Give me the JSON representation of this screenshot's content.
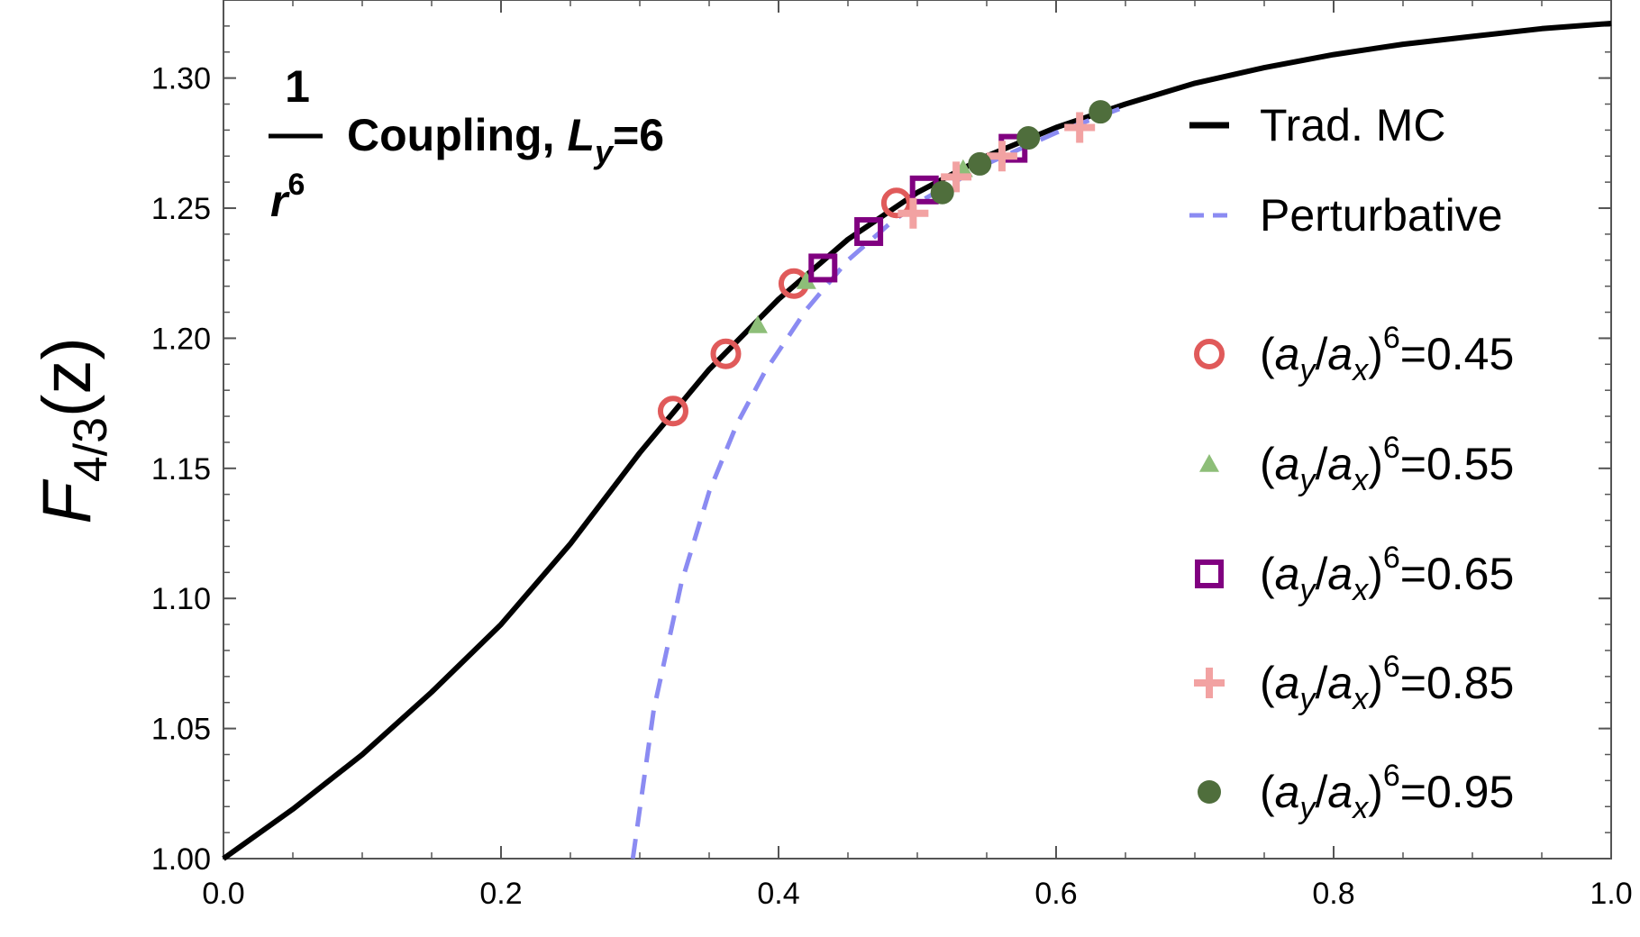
{
  "chart_data": {
    "type": "line",
    "title": {
      "numerator": "1",
      "denominator": "r",
      "denominator_exp": "6",
      "text": "Coupling,",
      "L": "L",
      "L_sub": "y",
      "L_value": "=6"
    },
    "ylabel": {
      "main": "F",
      "sub": "4/3",
      "arg": "(z)"
    },
    "xlabel": "",
    "xlim": [
      0.0,
      1.0
    ],
    "ylim": [
      1.0,
      1.33
    ],
    "xticks": [
      "0.0",
      "0.2",
      "0.4",
      "0.6",
      "0.8",
      "1.0"
    ],
    "yticks": [
      "1.00",
      "1.05",
      "1.10",
      "1.15",
      "1.20",
      "1.25",
      "1.30"
    ],
    "grid": false,
    "legend_position": "right",
    "lines": [
      {
        "name": "Trad. MC",
        "color": "#000000",
        "style": "solid",
        "x": [
          0.0,
          0.05,
          0.1,
          0.15,
          0.2,
          0.25,
          0.3,
          0.35,
          0.4,
          0.45,
          0.5,
          0.55,
          0.6,
          0.65,
          0.7,
          0.75,
          0.8,
          0.85,
          0.9,
          0.95,
          1.0
        ],
        "y": [
          1.0,
          1.019,
          1.04,
          1.064,
          1.09,
          1.121,
          1.156,
          1.188,
          1.215,
          1.238,
          1.256,
          1.27,
          1.281,
          1.29,
          1.298,
          1.304,
          1.309,
          1.313,
          1.316,
          1.319,
          1.321
        ]
      },
      {
        "name": "Perturbative",
        "color": "#8B8BF2",
        "style": "dashed",
        "x": [
          0.295,
          0.31,
          0.33,
          0.35,
          0.37,
          0.39,
          0.42,
          0.45,
          0.48,
          0.5,
          0.55,
          0.6,
          0.65
        ],
        "y": [
          1.0,
          1.057,
          1.106,
          1.141,
          1.167,
          1.187,
          1.211,
          1.23,
          1.244,
          1.252,
          1.267,
          1.279,
          1.289
        ]
      }
    ],
    "scatter": [
      {
        "name": "(a_y/a_x)^6=0.45",
        "label_parts": [
          "(",
          "a",
          "y",
          "/",
          "a",
          "x",
          ")",
          "6",
          "=0.45"
        ],
        "marker": "open-circle",
        "color": "#E05A5A",
        "x": [
          0.324,
          0.362,
          0.411,
          0.485
        ],
        "y": [
          1.172,
          1.194,
          1.221,
          1.252
        ]
      },
      {
        "name": "(a_y/a_x)^6=0.55",
        "label_parts": [
          "(",
          "a",
          "y",
          "/",
          "a",
          "x",
          ")",
          "6",
          "=0.55"
        ],
        "marker": "filled-triangle",
        "color": "#8DBE78",
        "x": [
          0.385,
          0.42,
          0.533
        ],
        "y": [
          1.205,
          1.222,
          1.265
        ]
      },
      {
        "name": "(a_y/a_x)^6=0.65",
        "label_parts": [
          "(",
          "a",
          "y",
          "/",
          "a",
          "x",
          ")",
          "6",
          "=0.65"
        ],
        "marker": "open-square",
        "color": "#800080",
        "x": [
          0.432,
          0.465,
          0.505,
          0.569
        ],
        "y": [
          1.227,
          1.241,
          1.257,
          1.273
        ]
      },
      {
        "name": "(a_y/a_x)^6=0.85",
        "label_parts": [
          "(",
          "a",
          "y",
          "/",
          "a",
          "x",
          ")",
          "6",
          "=0.85"
        ],
        "marker": "plus",
        "color": "#F2A2A2",
        "x": [
          0.497,
          0.528,
          0.561,
          0.617
        ],
        "y": [
          1.248,
          1.262,
          1.27,
          1.281
        ]
      },
      {
        "name": "(a_y/a_x)^6=0.95",
        "label_parts": [
          "(",
          "a",
          "y",
          "/",
          "a",
          "x",
          ")",
          "6",
          "=0.95"
        ],
        "marker": "filled-circle",
        "color": "#4F6E3C",
        "x": [
          0.518,
          0.545,
          0.58,
          0.632
        ],
        "y": [
          1.256,
          1.267,
          1.277,
          1.287
        ]
      }
    ]
  }
}
